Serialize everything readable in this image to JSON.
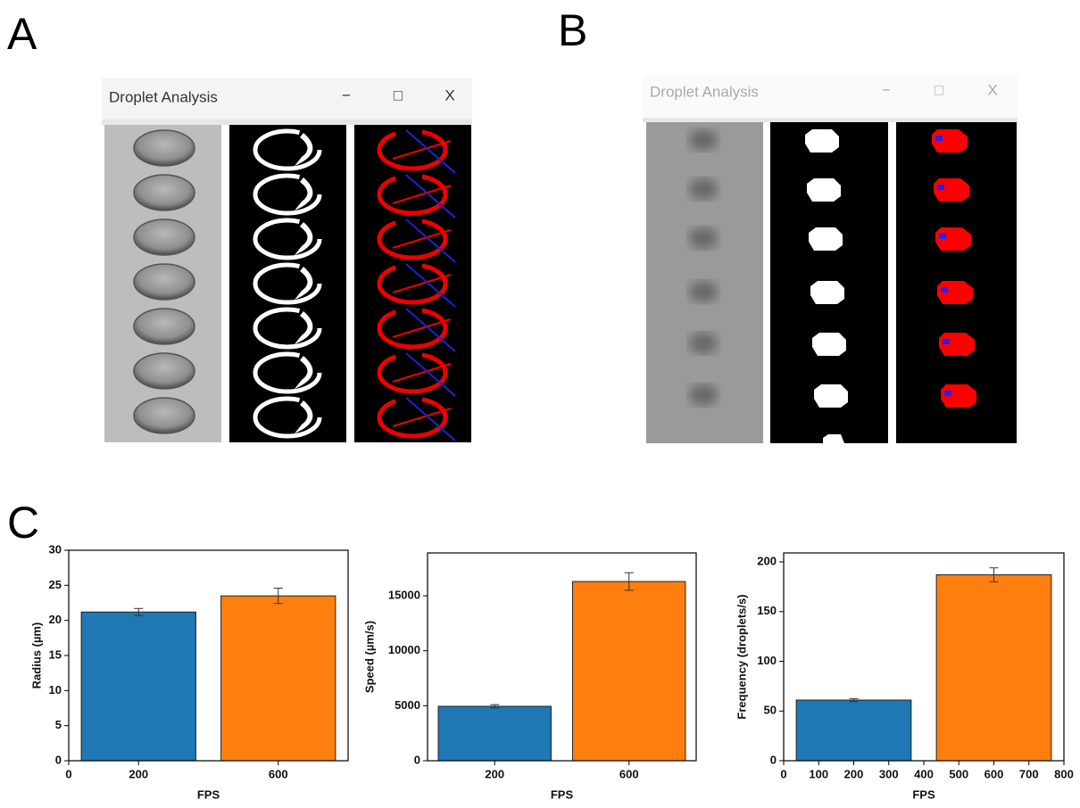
{
  "panel_labels": [
    "A",
    "B",
    "C"
  ],
  "windows": [
    {
      "title": "Droplet Analysis",
      "controls": [
        "−",
        "□",
        "X"
      ]
    },
    {
      "title": "Droplet Analysis",
      "controls": [
        "−",
        "□",
        "X"
      ]
    }
  ],
  "chart_data": [
    {
      "type": "bar",
      "x": [
        200,
        600
      ],
      "values": [
        21.2,
        23.5
      ],
      "errors": [
        0.5,
        1.1
      ],
      "colors": [
        "#1f77b4",
        "#ff7f0e"
      ],
      "xlim": [
        0,
        800
      ],
      "xticks": [
        0,
        200,
        600
      ],
      "ylim": [
        0,
        30
      ],
      "yticks": [
        0,
        5,
        10,
        15,
        20,
        25,
        30
      ],
      "xlabel": "FPS",
      "ylabel": "Radius (µm)"
    },
    {
      "type": "bar",
      "categories": [
        "200",
        "600"
      ],
      "values": [
        4950,
        16300
      ],
      "errors": [
        150,
        800
      ],
      "colors": [
        "#1f77b4",
        "#ff7f0e"
      ],
      "ylim": [
        0,
        18900
      ],
      "yticks": [
        0,
        5000,
        10000,
        15000
      ],
      "xlabel": "FPS",
      "ylabel": "Speed (µm/s)"
    },
    {
      "type": "bar",
      "x": [
        200,
        600
      ],
      "values": [
        61,
        187
      ],
      "errors": [
        1.5,
        7
      ],
      "colors": [
        "#1f77b4",
        "#ff7f0e"
      ],
      "xlim": [
        0,
        800
      ],
      "xticks": [
        0,
        100,
        200,
        300,
        400,
        500,
        600,
        700,
        800
      ],
      "ylim": [
        0,
        209
      ],
      "yticks": [
        0,
        50,
        100,
        150,
        200
      ],
      "xlabel": "FPS",
      "ylabel": "Frequency (droplets/s)"
    }
  ]
}
